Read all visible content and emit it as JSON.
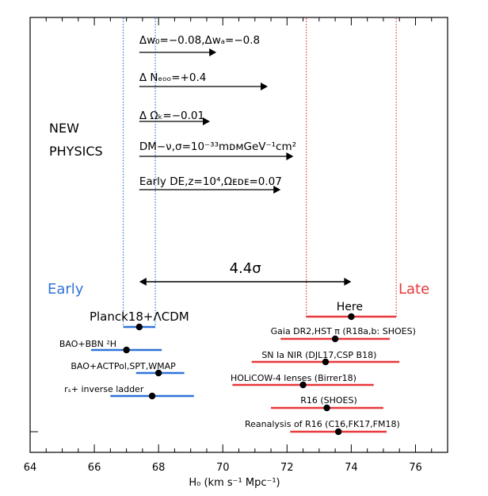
{
  "chart_data": {
    "type": "scatter",
    "title": "",
    "xlabel": "H₀ (km s⁻¹ Mpc⁻¹)",
    "ylabel": "",
    "xlim": [
      64,
      77
    ],
    "x_ticks": [
      64,
      66,
      68,
      70,
      72,
      74,
      76
    ],
    "grid": false,
    "colors": {
      "early": "#2f73d9",
      "late": "#e8383b",
      "ink": "#000000",
      "white": "#ffffff"
    },
    "labels": {
      "early": "Early",
      "late": "Late",
      "new_physics_1": "NEW",
      "new_physics_2": "PHYSICS"
    },
    "bands": [
      {
        "group": "early",
        "lo": 66.9,
        "hi": 67.9
      },
      {
        "group": "late",
        "lo": 72.6,
        "hi": 75.4
      }
    ],
    "tension": {
      "label": "4.4σ",
      "from": 67.4,
      "to": 74.0
    },
    "new_physics": [
      {
        "text": "Δw₀=−0.08,Δwₐ=−0.8",
        "from": 67.4,
        "to": 69.8
      },
      {
        "text": "Δ Nₑₒₒ=+0.4",
        "from": 67.4,
        "to": 71.4
      },
      {
        "text": "Δ Ωₖ=−0.01",
        "from": 67.4,
        "to": 69.6
      },
      {
        "text": "DM−ν,σ=10⁻³³mᴅᴍGeV⁻¹cm²",
        "from": 67.4,
        "to": 72.2
      },
      {
        "text": "Early DE,z=10⁴,Ωᴇᴅᴇ=0.07",
        "from": 67.4,
        "to": 71.8
      }
    ],
    "series": [
      {
        "name": "early",
        "points": [
          {
            "label": "Planck18+ΛCDM",
            "x": 67.4,
            "lo": 66.9,
            "hi": 67.9
          },
          {
            "label": "BAO+BBN ²H",
            "x": 67.0,
            "lo": 65.9,
            "hi": 68.1
          },
          {
            "label": "BAO+ACTPol,SPT,WMAP",
            "x": 68.0,
            "lo": 67.3,
            "hi": 68.8
          },
          {
            "label": "rₛ+ inverse ladder",
            "x": 67.8,
            "lo": 66.5,
            "hi": 69.1
          }
        ]
      },
      {
        "name": "late",
        "points": [
          {
            "label": "Here",
            "x": 74.0,
            "lo": 72.6,
            "hi": 75.4
          },
          {
            "label": "Gaia DR2,HST π (R18a,b: SHOES)",
            "x": 73.5,
            "lo": 71.8,
            "hi": 75.2
          },
          {
            "label": "SN Ia NIR (DJL17,CSP B18)",
            "x": 73.2,
            "lo": 70.9,
            "hi": 75.5
          },
          {
            "label": "HOLiCOW-4 lenses (Birrer18)",
            "x": 72.5,
            "lo": 70.3,
            "hi": 74.7
          },
          {
            "label": "R16 (SHOES)",
            "x": 73.24,
            "lo": 71.5,
            "hi": 75.0
          },
          {
            "label": "Reanalysis of R16 (C16,FK17,FM18)",
            "x": 73.6,
            "lo": 72.1,
            "hi": 75.1
          }
        ]
      }
    ]
  }
}
